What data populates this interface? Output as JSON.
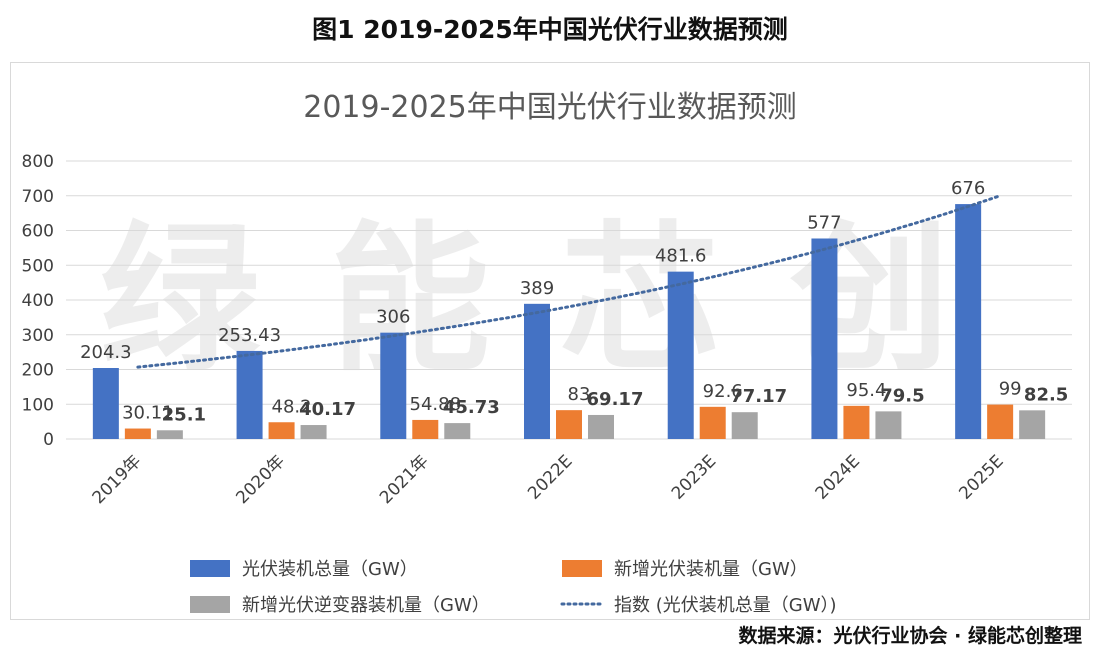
{
  "figure_title": "图1 2019-2025年中国光伏行业数据预测",
  "source_note": "数据来源：光伏行业协会 · 绿能芯创整理",
  "watermark": "绿能芯创",
  "chart_data": {
    "type": "bar",
    "title": "2019-2025年中国光伏行业数据预测",
    "categories": [
      "2019年",
      "2020年",
      "2021年",
      "2022E",
      "2023E",
      "2024E",
      "2025E"
    ],
    "series": [
      {
        "name": "光伏装机总量（GW）",
        "color": "#4472c4",
        "values": [
          204.3,
          253.43,
          306,
          389,
          481.6,
          577,
          676
        ]
      },
      {
        "name": "新增光伏装机量（GW）",
        "color": "#ed7d31",
        "values": [
          30.11,
          48.2,
          54.88,
          83,
          92.6,
          95.4,
          99
        ]
      },
      {
        "name": "新增光伏逆变器装机量（GW）",
        "color": "#a5a5a5",
        "values": [
          25.1,
          40.17,
          45.73,
          69.17,
          77.17,
          79.5,
          82.5
        ]
      }
    ],
    "trendline": {
      "name": "指数 (光伏装机总量（GW）)",
      "type": "exponential",
      "of_series": 0,
      "style": "dotted",
      "color": "#44699f"
    },
    "ylim": [
      0,
      800
    ],
    "yticks": [
      0,
      100,
      200,
      300,
      400,
      500,
      600,
      700,
      800
    ],
    "grid": true,
    "legend": "bottom"
  }
}
